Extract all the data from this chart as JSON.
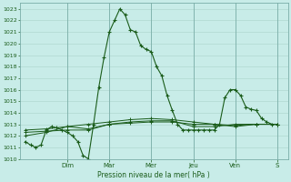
{
  "bg_color": "#c8ece8",
  "grid_color": "#b0d8d0",
  "line_color": "#1a5c1a",
  "marker_color": "#1a5c1a",
  "xlabel": "Pression niveau de la mer( hPa )",
  "ylim": [
    1010,
    1023.5
  ],
  "yticks": [
    1010,
    1011,
    1012,
    1013,
    1014,
    1015,
    1016,
    1017,
    1018,
    1019,
    1020,
    1021,
    1022,
    1023
  ],
  "day_labels": [
    "Dim",
    "Mar",
    "Mer",
    "Jeu",
    "Ven",
    "S"
  ],
  "day_positions": [
    8,
    16,
    24,
    32,
    40,
    48
  ],
  "series1": {
    "x": [
      0,
      1,
      2,
      3,
      4,
      5,
      6,
      7,
      8,
      9,
      10,
      11,
      12,
      13,
      14,
      15,
      16,
      17,
      18,
      19,
      20,
      21,
      22,
      23,
      24,
      25,
      26,
      27,
      28,
      29,
      30,
      31,
      32,
      33,
      34,
      35,
      36,
      37,
      38,
      39,
      40,
      41,
      42,
      43,
      44,
      45,
      46,
      47,
      48
    ],
    "y": [
      1011.5,
      1011.2,
      1011.0,
      1011.2,
      1012.5,
      1012.8,
      1012.7,
      1012.5,
      1012.3,
      1012.0,
      1011.5,
      1010.3,
      1010.0,
      1013.0,
      1016.2,
      1018.8,
      1021.0,
      1022.0,
      1023.0,
      1022.5,
      1021.2,
      1021.0,
      1019.8,
      1019.5,
      1019.3,
      1018.0,
      1017.2,
      1015.5,
      1014.2,
      1013.0,
      1012.5,
      1012.5,
      1012.5,
      1012.5,
      1012.5,
      1012.5,
      1012.5,
      1013.0,
      1015.3,
      1016.0,
      1016.0,
      1015.5,
      1014.5,
      1014.3,
      1014.2,
      1013.5,
      1013.2,
      1013.0,
      1013.0
    ]
  },
  "series2": {
    "x": [
      0,
      4,
      8,
      12,
      16,
      20,
      24,
      28,
      32,
      36,
      40,
      44,
      48
    ],
    "y": [
      1012.0,
      1012.3,
      1012.8,
      1012.6,
      1013.0,
      1013.1,
      1013.2,
      1013.2,
      1013.0,
      1013.0,
      1012.8,
      1013.0,
      1013.0
    ]
  },
  "series3": {
    "x": [
      0,
      4,
      8,
      12,
      16,
      20,
      24,
      28,
      32,
      36,
      40,
      44,
      48
    ],
    "y": [
      1012.3,
      1012.4,
      1012.5,
      1012.5,
      1013.0,
      1013.2,
      1013.3,
      1013.3,
      1012.8,
      1012.8,
      1013.0,
      1013.0,
      1013.0
    ]
  },
  "series4": {
    "x": [
      0,
      4,
      8,
      12,
      16,
      20,
      24,
      28,
      32,
      36,
      40,
      44,
      48
    ],
    "y": [
      1012.5,
      1012.6,
      1012.8,
      1013.0,
      1013.2,
      1013.4,
      1013.5,
      1013.4,
      1013.2,
      1013.0,
      1012.9,
      1013.0,
      1013.0
    ]
  }
}
